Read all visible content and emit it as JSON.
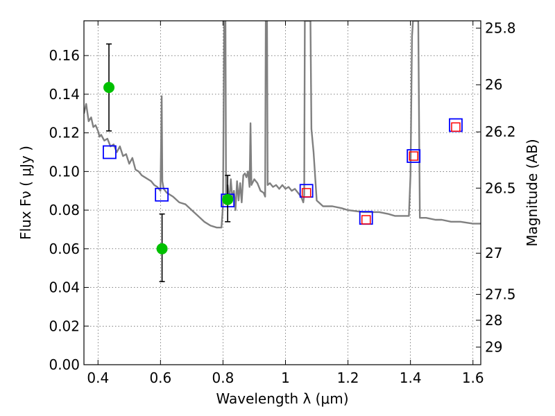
{
  "chart_data": {
    "type": "scatter",
    "xlabel": "Wavelength  λ (μm)",
    "ylabel": "Flux  Fν  ( μJy )",
    "ylabel_right": "Magnitude (AB)",
    "xlim": [
      0.355,
      1.625
    ],
    "ylim": [
      0.0,
      0.178
    ],
    "grid": true,
    "x_ticks": [
      0.4,
      0.6,
      0.8,
      1.0,
      1.2,
      1.4,
      1.6
    ],
    "x_tick_labels": [
      "0.4",
      "0.6",
      "0.8",
      "1",
      "1.2",
      "1.4",
      "1.6"
    ],
    "y_ticks": [
      0.0,
      0.02,
      0.04,
      0.06,
      0.08,
      0.1,
      0.12,
      0.14,
      0.16
    ],
    "y_tick_labels": [
      "0.00",
      "0.02",
      "0.04",
      "0.06",
      "0.08",
      "0.10",
      "0.12",
      "0.14",
      "0.16"
    ],
    "right_ticks": [
      {
        "label": "25.8",
        "flux": 0.1742
      },
      {
        "label": "26",
        "flux": 0.1449
      },
      {
        "label": "26.2",
        "flux": 0.1205
      },
      {
        "label": "26.5",
        "flux": 0.0914
      },
      {
        "label": "27",
        "flux": 0.0577
      },
      {
        "label": "27.5",
        "flux": 0.0364
      },
      {
        "label": "28",
        "flux": 0.023
      },
      {
        "label": "29",
        "flux": 0.0091
      }
    ],
    "series": [
      {
        "style": "line",
        "color": "#808080",
        "points": [
          [
            0.355,
            0.13
          ],
          [
            0.362,
            0.135
          ],
          [
            0.37,
            0.126
          ],
          [
            0.378,
            0.128
          ],
          [
            0.385,
            0.123
          ],
          [
            0.392,
            0.124
          ],
          [
            0.4,
            0.121
          ],
          [
            0.405,
            0.118
          ],
          [
            0.41,
            0.119
          ],
          [
            0.42,
            0.116
          ],
          [
            0.43,
            0.117
          ],
          [
            0.44,
            0.113
          ],
          [
            0.45,
            0.114
          ],
          [
            0.46,
            0.11
          ],
          [
            0.47,
            0.113
          ],
          [
            0.48,
            0.108
          ],
          [
            0.49,
            0.109
          ],
          [
            0.5,
            0.104
          ],
          [
            0.51,
            0.107
          ],
          [
            0.52,
            0.101
          ],
          [
            0.53,
            0.1
          ],
          [
            0.54,
            0.098
          ],
          [
            0.55,
            0.097
          ],
          [
            0.56,
            0.096
          ],
          [
            0.57,
            0.095
          ],
          [
            0.58,
            0.093
          ],
          [
            0.59,
            0.092
          ],
          [
            0.6,
            0.09
          ],
          [
            0.604,
            0.139
          ],
          [
            0.606,
            0.095
          ],
          [
            0.61,
            0.091
          ],
          [
            0.62,
            0.089
          ],
          [
            0.64,
            0.087
          ],
          [
            0.66,
            0.084
          ],
          [
            0.68,
            0.083
          ],
          [
            0.7,
            0.08
          ],
          [
            0.72,
            0.077
          ],
          [
            0.74,
            0.074
          ],
          [
            0.76,
            0.072
          ],
          [
            0.78,
            0.071
          ],
          [
            0.795,
            0.071
          ],
          [
            0.8,
            0.082
          ],
          [
            0.804,
            0.178
          ],
          [
            0.808,
            0.178
          ],
          [
            0.81,
            0.083
          ],
          [
            0.815,
            0.093
          ],
          [
            0.82,
            0.084
          ],
          [
            0.825,
            0.096
          ],
          [
            0.83,
            0.086
          ],
          [
            0.835,
            0.09
          ],
          [
            0.84,
            0.08
          ],
          [
            0.845,
            0.095
          ],
          [
            0.85,
            0.085
          ],
          [
            0.855,
            0.094
          ],
          [
            0.86,
            0.084
          ],
          [
            0.865,
            0.098
          ],
          [
            0.87,
            0.099
          ],
          [
            0.875,
            0.097
          ],
          [
            0.88,
            0.1
          ],
          [
            0.885,
            0.092
          ],
          [
            0.888,
            0.125
          ],
          [
            0.891,
            0.093
          ],
          [
            0.9,
            0.096
          ],
          [
            0.91,
            0.094
          ],
          [
            0.92,
            0.09
          ],
          [
            0.93,
            0.089
          ],
          [
            0.935,
            0.087
          ],
          [
            0.937,
            0.178
          ],
          [
            0.941,
            0.178
          ],
          [
            0.943,
            0.093
          ],
          [
            0.95,
            0.094
          ],
          [
            0.96,
            0.092
          ],
          [
            0.97,
            0.093
          ],
          [
            0.98,
            0.091
          ],
          [
            0.99,
            0.093
          ],
          [
            1.0,
            0.091
          ],
          [
            1.01,
            0.092
          ],
          [
            1.02,
            0.09
          ],
          [
            1.03,
            0.091
          ],
          [
            1.04,
            0.089
          ],
          [
            1.05,
            0.087
          ],
          [
            1.057,
            0.084
          ],
          [
            1.06,
            0.088
          ],
          [
            1.062,
            0.178
          ],
          [
            1.08,
            0.178
          ],
          [
            1.083,
            0.122
          ],
          [
            1.09,
            0.11
          ],
          [
            1.1,
            0.085
          ],
          [
            1.12,
            0.082
          ],
          [
            1.15,
            0.082
          ],
          [
            1.18,
            0.081
          ],
          [
            1.2,
            0.08
          ],
          [
            1.25,
            0.079
          ],
          [
            1.3,
            0.079
          ],
          [
            1.33,
            0.078
          ],
          [
            1.35,
            0.077
          ],
          [
            1.38,
            0.077
          ],
          [
            1.395,
            0.077
          ],
          [
            1.4,
            0.098
          ],
          [
            1.405,
            0.17
          ],
          [
            1.408,
            0.178
          ],
          [
            1.425,
            0.178
          ],
          [
            1.43,
            0.076
          ],
          [
            1.45,
            0.076
          ],
          [
            1.48,
            0.075
          ],
          [
            1.5,
            0.075
          ],
          [
            1.53,
            0.074
          ],
          [
            1.56,
            0.074
          ],
          [
            1.6,
            0.073
          ],
          [
            1.625,
            0.073
          ]
        ]
      },
      {
        "style": "blue-open-square",
        "color": "#0000ff",
        "points": [
          [
            0.437,
            0.11
          ],
          [
            0.604,
            0.088
          ],
          [
            0.815,
            0.085
          ],
          [
            1.067,
            0.09
          ],
          [
            1.258,
            0.076
          ],
          [
            1.41,
            0.108
          ],
          [
            1.545,
            0.124
          ]
        ]
      },
      {
        "style": "red-open-square",
        "color": "#ff0000",
        "points": [
          [
            1.067,
            0.089
          ],
          [
            1.258,
            0.075
          ],
          [
            1.41,
            0.108
          ],
          [
            1.545,
            0.123
          ]
        ]
      },
      {
        "style": "green-circle-errorbar",
        "color": "#00c000",
        "points": [
          {
            "x": 0.435,
            "y": 0.1435,
            "ylow": 0.121,
            "yhigh": 0.166
          },
          {
            "x": 0.605,
            "y": 0.06,
            "ylow": 0.043,
            "yhigh": 0.078
          },
          {
            "x": 0.815,
            "y": 0.0855,
            "ylow": 0.074,
            "yhigh": 0.098
          }
        ]
      }
    ]
  }
}
